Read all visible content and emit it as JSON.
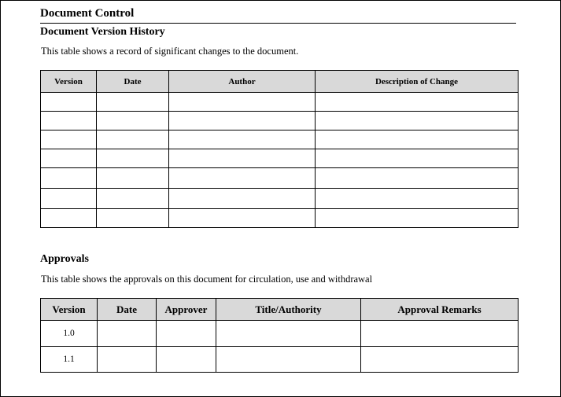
{
  "header": {
    "title": "Document Control"
  },
  "version_history": {
    "title": "Document Version History",
    "description": "This table shows a record of significant changes to the document.",
    "columns": [
      "Version",
      "Date",
      "Author",
      "Description of Change"
    ]
  },
  "approvals": {
    "title": "Approvals",
    "description": "This table shows the approvals on this document for circulation, use and withdrawal",
    "columns": [
      "Version",
      "Date",
      "Approver",
      "Title/Authority",
      "Approval Remarks"
    ],
    "rows": [
      {
        "version": "1.0"
      },
      {
        "version": "1.1"
      }
    ]
  }
}
